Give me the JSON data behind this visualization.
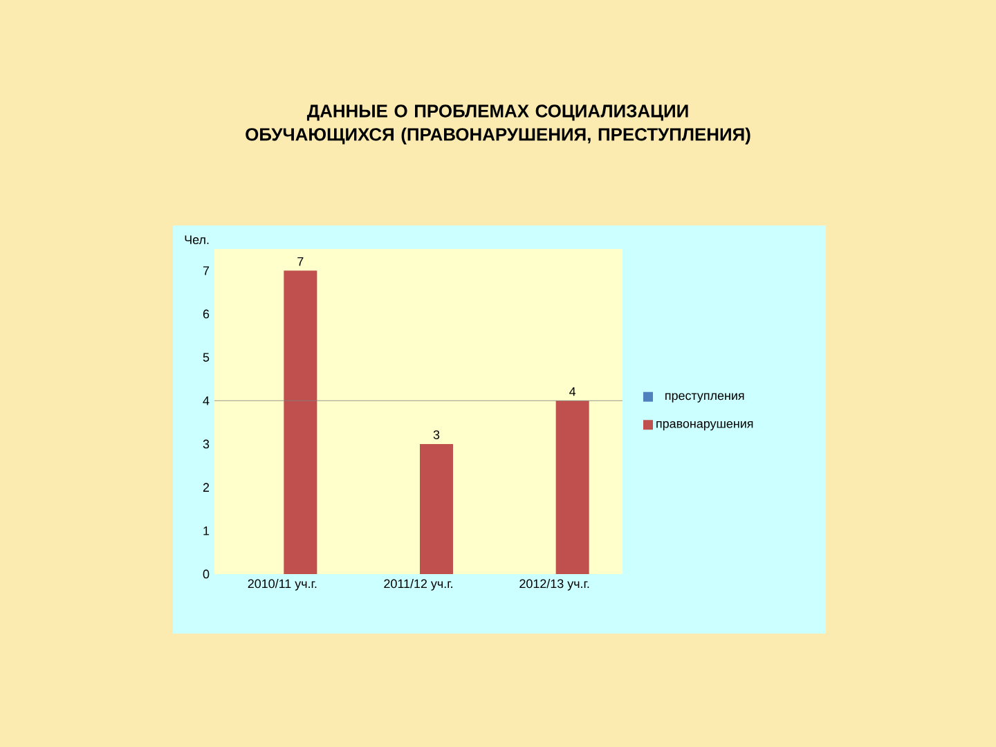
{
  "chart_data": {
    "type": "bar",
    "title": "ДАННЫЕ О ПРОБЛЕМАХ СОЦИАЛИЗАЦИИ ОБУЧАЮЩИХСЯ (ПРАВОНАРУШЕНИЯ, ПРЕСТУПЛЕНИЯ)",
    "ylabel": "Чел.",
    "categories": [
      "2010/11 уч.г.",
      "2011/12 уч.г.",
      "2012/13 уч.г."
    ],
    "series": [
      {
        "name": "преступления",
        "color": "#4f81bd",
        "values": [
          0,
          0,
          0
        ]
      },
      {
        "name": "правонарушения",
        "color": "#c0504d",
        "values": [
          7,
          3,
          4
        ],
        "value_labels": [
          "7",
          "3",
          "4"
        ]
      }
    ],
    "ylim": [
      0,
      7.5
    ],
    "yticks": [
      0,
      1,
      2,
      3,
      4,
      5,
      6,
      7
    ],
    "ref_lines": [
      {
        "axis": "y",
        "value": 4,
        "color": "#808080"
      }
    ],
    "legend": "right"
  }
}
